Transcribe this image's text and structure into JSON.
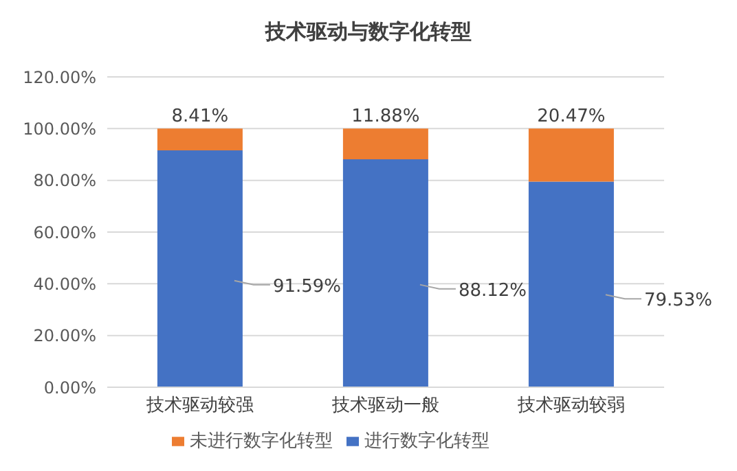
{
  "chart_data": {
    "type": "bar",
    "title": "技术驱动与数字化转型",
    "categories": [
      "技术驱动较强",
      "技术驱动一般",
      "技术驱动较弱"
    ],
    "stacked": true,
    "series": [
      {
        "name": "进行数字化转型",
        "color": "#4472c4",
        "values": [
          91.59,
          88.12,
          79.53
        ],
        "value_labels": [
          "91.59%",
          "88.12%",
          "79.53%"
        ]
      },
      {
        "name": "未进行数字化转型",
        "color": "#ed7d31",
        "values": [
          8.41,
          11.88,
          20.47
        ],
        "value_labels": [
          "8.41%",
          "11.88%",
          "20.47%"
        ]
      }
    ],
    "ylim": [
      0,
      120
    ],
    "yticks": [
      {
        "value": 0,
        "label": "0.00%"
      },
      {
        "value": 20,
        "label": "20.00%"
      },
      {
        "value": 40,
        "label": "40.00%"
      },
      {
        "value": 60,
        "label": "60.00%"
      },
      {
        "value": 80,
        "label": "80.00%"
      },
      {
        "value": 100,
        "label": "100.00%"
      },
      {
        "value": 120,
        "label": "120.00%"
      }
    ],
    "grid": "y",
    "legend": "bottom"
  }
}
